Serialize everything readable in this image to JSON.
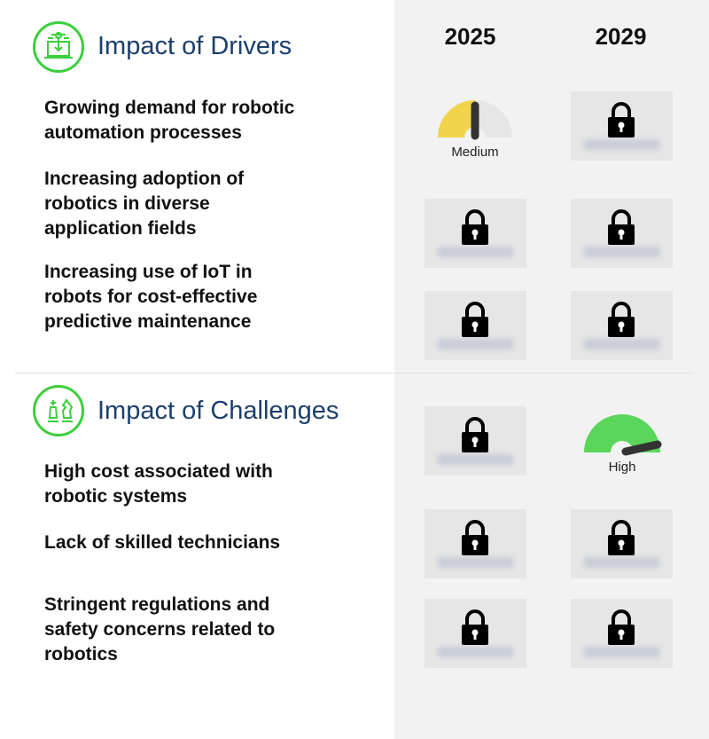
{
  "years": [
    "2025",
    "2029"
  ],
  "drivers": {
    "title": "Impact of Drivers",
    "icon": "circuit-laptop-icon",
    "items": [
      {
        "label": "Growing demand for robotic automation processes",
        "y2025": {
          "type": "gauge",
          "level": "Medium",
          "fraction": 0.5
        },
        "y2029": {
          "type": "locked"
        }
      },
      {
        "label": "Increasing adoption of robotics in diverse application fields",
        "y2025": {
          "type": "locked"
        },
        "y2029": {
          "type": "locked"
        }
      },
      {
        "label": "Increasing use of IoT in robots for cost-effective predictive maintenance",
        "y2025": {
          "type": "locked"
        },
        "y2029": {
          "type": "locked"
        }
      }
    ]
  },
  "challenges": {
    "title": "Impact of Challenges",
    "icon": "chess-pieces-icon",
    "items": [
      {
        "label": "High cost associated with robotic systems",
        "y2025": {
          "type": "locked"
        },
        "y2029": {
          "type": "gauge",
          "level": "High",
          "fraction": 0.92
        }
      },
      {
        "label": "Lack of skilled technicians",
        "y2025": {
          "type": "locked"
        },
        "y2029": {
          "type": "locked"
        }
      },
      {
        "label": "Stringent regulations and safety concerns related to robotics",
        "y2025": {
          "type": "locked"
        },
        "y2029": {
          "type": "locked"
        }
      }
    ]
  },
  "colors": {
    "heading": "#1c3f6e",
    "icon_green": "#3ccf3c",
    "medium": "#f1d44a",
    "high": "#5ad65a",
    "gauge_bg": "#e6e6e6"
  }
}
